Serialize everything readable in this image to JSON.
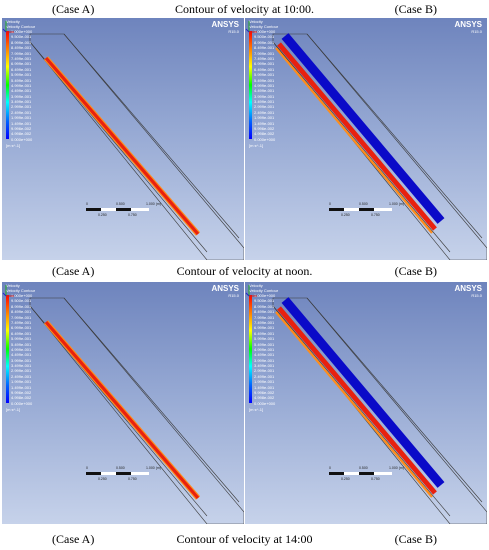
{
  "captions": [
    {
      "left": "(Case A)",
      "center": "Contour of velocity at 10:00.",
      "right": "(Case B)"
    },
    {
      "left": "(Case A)",
      "center": "Contour of velocity at noon.",
      "right": "(Case B)"
    },
    {
      "left": "(Case A)",
      "center": "Contour of velocity at 14:00",
      "right": "(Case B)"
    }
  ],
  "panel_text": {
    "legend_title": "Velocity",
    "legend_subtitle": "Velocity Contour",
    "unit": "[m s^-1]",
    "logo": "ANSYS",
    "version": "R15.0",
    "scale_top": [
      "0",
      "0.500",
      "1.000 (m)"
    ],
    "scale_bottom": [
      "0.250",
      "0.750"
    ]
  },
  "legend_ticks": {
    "case_a": [
      "1.000e+000",
      "9.500e-001",
      "8.999e-001",
      "8.499e-001",
      "7.999e-001",
      "7.499e-001",
      "6.999e-001",
      "6.499e-001",
      "5.999e-001",
      "5.499e-001",
      "4.999e-001",
      "4.499e-001",
      "3.999e-001",
      "3.499e-001",
      "2.999e-001",
      "2.499e-001",
      "1.999e-001",
      "1.499e-001",
      "9.996e-002",
      "4.998e-002",
      "0.000e+000"
    ],
    "case_b": [
      "1.000e+000",
      "9.500e-001",
      "8.999e-001",
      "8.499e-001",
      "7.999e-001",
      "7.499e-001",
      "6.999e-001",
      "6.499e-001",
      "5.999e-001",
      "5.499e-001",
      "4.999e-001",
      "4.499e-001",
      "3.999e-001",
      "3.499e-001",
      "2.999e-001",
      "2.499e-001",
      "1.999e-001",
      "1.499e-001",
      "9.996e-002",
      "4.998e-002",
      "0.000e+000"
    ]
  },
  "colors": {
    "red": "#e8210f",
    "orange": "#ff8c1a",
    "blue": "#0a0ac8"
  }
}
